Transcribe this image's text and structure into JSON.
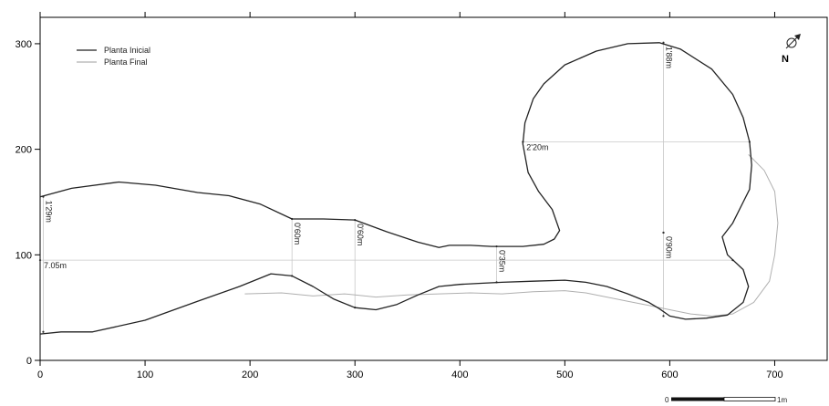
{
  "chart_data": {
    "type": "diagram",
    "xlim": [
      0,
      750
    ],
    "ylim": [
      0,
      325
    ],
    "x_ticks": [
      0,
      100,
      200,
      300,
      400,
      500,
      600,
      700
    ],
    "y_ticks": [
      0,
      100,
      200,
      300
    ],
    "legend": {
      "position": "top-left",
      "entries": [
        {
          "label": "Planta Inicial",
          "color": "#222222"
        },
        {
          "label": "Planta Final",
          "color": "#b0b0b0"
        }
      ]
    },
    "north_label": "N",
    "scale_bar": {
      "start_label": "0",
      "end_label": "1m"
    },
    "series": [
      {
        "name": "Planta Inicial",
        "color": "#222222",
        "points": [
          [
            0,
            155
          ],
          [
            30,
            163
          ],
          [
            75,
            169
          ],
          [
            110,
            166
          ],
          [
            150,
            159
          ],
          [
            180,
            156
          ],
          [
            210,
            148
          ],
          [
            240,
            134
          ],
          [
            270,
            134
          ],
          [
            300,
            133
          ],
          [
            330,
            122
          ],
          [
            360,
            112
          ],
          [
            380,
            107
          ],
          [
            390,
            109
          ],
          [
            410,
            109
          ],
          [
            430,
            108
          ],
          [
            460,
            108
          ],
          [
            480,
            110
          ],
          [
            490,
            115
          ],
          [
            495,
            123
          ],
          [
            488,
            143
          ],
          [
            475,
            160
          ],
          [
            465,
            178
          ],
          [
            460,
            205
          ],
          [
            462,
            225
          ],
          [
            470,
            248
          ],
          [
            480,
            262
          ],
          [
            500,
            280
          ],
          [
            530,
            293
          ],
          [
            560,
            300
          ],
          [
            590,
            301
          ],
          [
            610,
            295
          ],
          [
            640,
            276
          ],
          [
            660,
            252
          ],
          [
            670,
            230
          ],
          [
            676,
            207
          ],
          [
            678,
            185
          ],
          [
            676,
            162
          ],
          [
            670,
            150
          ],
          [
            660,
            130
          ],
          [
            650,
            117
          ],
          [
            655,
            100
          ],
          [
            670,
            86
          ],
          [
            675,
            70
          ],
          [
            670,
            55
          ],
          [
            655,
            43
          ],
          [
            635,
            40
          ],
          [
            615,
            39
          ],
          [
            600,
            42
          ],
          [
            590,
            49
          ],
          [
            580,
            55
          ],
          [
            560,
            63
          ],
          [
            540,
            70
          ],
          [
            520,
            74
          ],
          [
            500,
            76
          ],
          [
            470,
            75
          ],
          [
            440,
            74
          ],
          [
            420,
            73
          ],
          [
            400,
            72
          ],
          [
            380,
            70
          ],
          [
            360,
            62
          ],
          [
            340,
            53
          ],
          [
            320,
            48
          ],
          [
            300,
            50
          ],
          [
            280,
            58
          ],
          [
            260,
            70
          ],
          [
            240,
            80
          ],
          [
            220,
            82
          ],
          [
            190,
            70
          ],
          [
            150,
            56
          ],
          [
            100,
            38
          ],
          [
            50,
            27
          ],
          [
            20,
            27
          ],
          [
            0,
            25
          ]
        ]
      },
      {
        "name": "Planta Final",
        "color": "#b0b0b0",
        "points": [
          [
            195,
            63
          ],
          [
            230,
            64
          ],
          [
            260,
            61
          ],
          [
            290,
            63
          ],
          [
            320,
            60
          ],
          [
            350,
            62
          ],
          [
            380,
            63
          ],
          [
            410,
            64
          ],
          [
            440,
            63
          ],
          [
            470,
            65
          ],
          [
            500,
            66
          ],
          [
            520,
            64
          ],
          [
            540,
            60
          ],
          [
            560,
            56
          ],
          [
            580,
            52
          ],
          [
            600,
            48
          ],
          [
            620,
            44
          ],
          [
            640,
            42
          ],
          [
            660,
            44
          ],
          [
            680,
            55
          ],
          [
            695,
            75
          ],
          [
            700,
            100
          ],
          [
            703,
            130
          ],
          [
            700,
            160
          ],
          [
            690,
            180
          ],
          [
            675,
            195
          ]
        ]
      }
    ],
    "dimensions": [
      {
        "label": "1'29m",
        "x": 3,
        "y1": 27,
        "y2": 155,
        "orientation": "vertical"
      },
      {
        "label": "0'60m",
        "x": 240,
        "y1": 80,
        "y2": 134,
        "orientation": "vertical"
      },
      {
        "label": "0'60m",
        "x": 300,
        "y1": 50,
        "y2": 133,
        "orientation": "vertical"
      },
      {
        "label": "0'35m",
        "x": 435,
        "y1": 74,
        "y2": 108,
        "orientation": "vertical"
      },
      {
        "label": "1'88m",
        "x": 594,
        "y1": 121,
        "y2": 301,
        "orientation": "vertical"
      },
      {
        "label": "0'90m",
        "x": 594,
        "y1": 42,
        "y2": 121,
        "orientation": "vertical"
      },
      {
        "label": "2'20m",
        "y": 207,
        "x1": 460,
        "x2": 676,
        "orientation": "horizontal"
      },
      {
        "label": "7.05m",
        "y": 95,
        "x1": 0,
        "x2": 660,
        "orientation": "horizontal"
      }
    ]
  }
}
